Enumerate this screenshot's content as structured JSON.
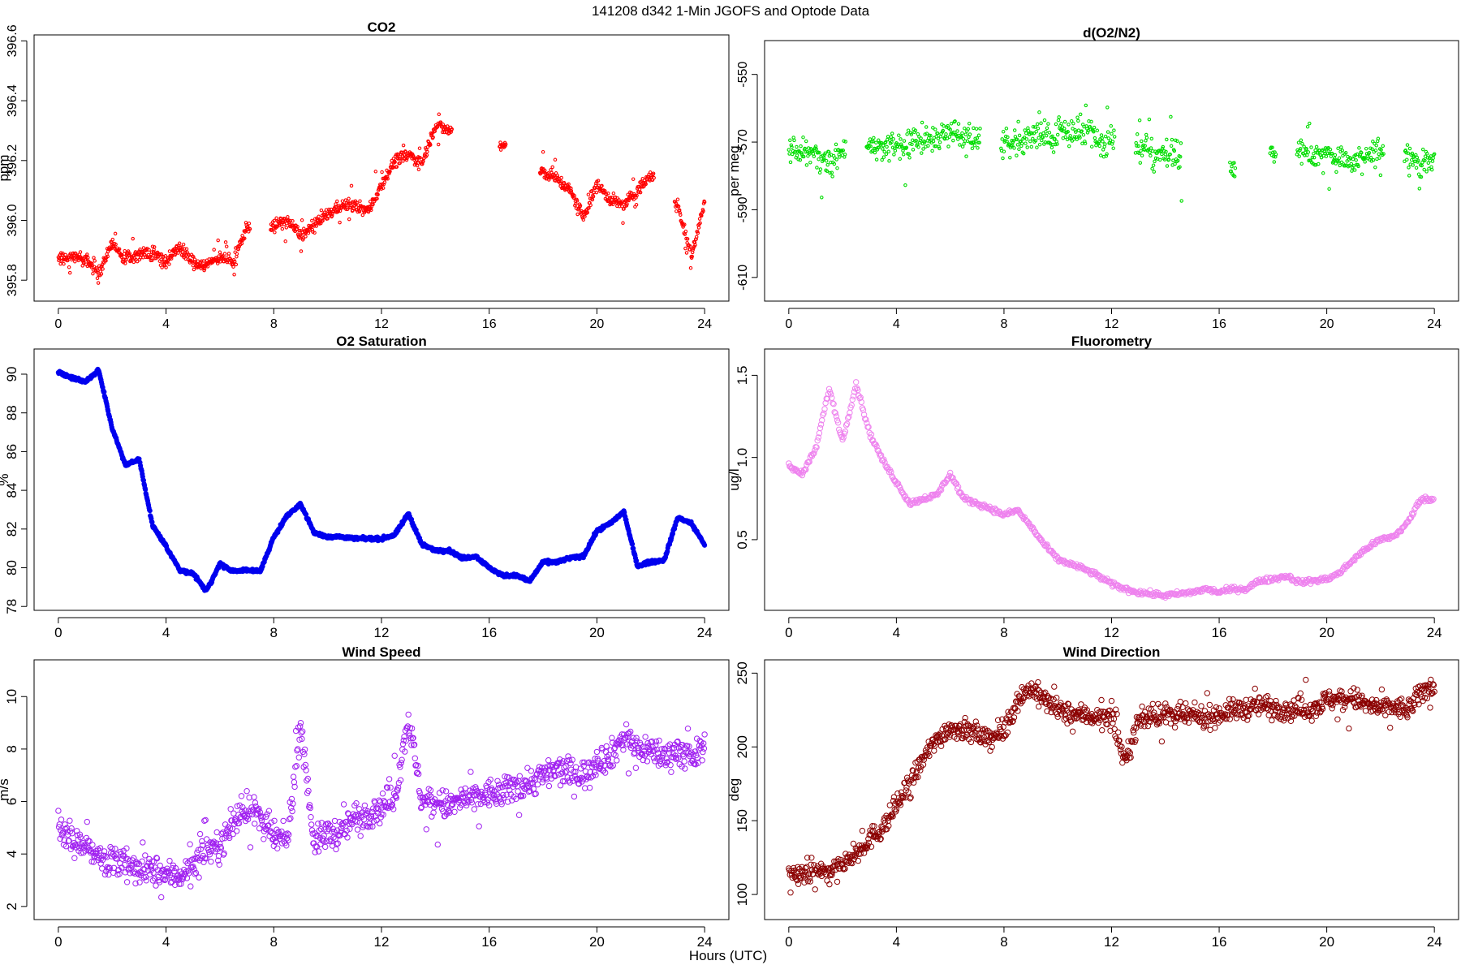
{
  "figure": {
    "title": "141208   d342   1-Min  JGOFS and Optode Data",
    "xlabel": "Hours (UTC)"
  },
  "chart_data": [
    {
      "id": "co2",
      "type": "scatter",
      "title": "CO2",
      "ylabel": "ppm",
      "color": "#ff0000",
      "xlim": [
        -0.9,
        24.9
      ],
      "ylim": [
        395.73,
        396.62
      ],
      "xticks": [
        0,
        4,
        8,
        12,
        16,
        20,
        24
      ],
      "yticks": [
        395.8,
        396.0,
        396.2,
        396.4,
        396.6
      ],
      "ytick_labels": [
        "395.8",
        "396.0",
        "396.2",
        "396.4",
        "396.6"
      ],
      "series": [
        {
          "name": "CO2",
          "x": [
            0,
            0.5,
            1,
            1.5,
            2,
            2.5,
            3,
            3.5,
            4,
            4.5,
            5,
            5.5,
            6,
            6.5,
            7,
            7.5,
            8,
            8.5,
            9,
            9.5,
            10,
            10.5,
            11,
            11.5,
            12,
            12.5,
            13,
            13.5,
            14,
            14.5,
            15,
            15.5,
            16,
            16.5,
            17,
            17.5,
            18,
            18.5,
            19,
            19.5,
            20,
            20.5,
            21,
            21.5,
            22,
            22.5,
            23,
            23.5,
            24
          ],
          "y": [
            395.87,
            395.88,
            395.87,
            395.82,
            395.92,
            395.87,
            395.89,
            395.89,
            395.86,
            395.91,
            395.86,
            395.85,
            395.88,
            395.86,
            395.98,
            null,
            395.98,
            396.0,
            395.95,
            395.98,
            396.02,
            396.05,
            396.05,
            396.03,
            396.12,
            396.2,
            396.22,
            396.19,
            396.32,
            396.3,
            null,
            null,
            null,
            396.25,
            null,
            null,
            396.16,
            396.14,
            396.1,
            396.01,
            396.12,
            396.07,
            396.05,
            396.1,
            396.15,
            null,
            396.05,
            395.88,
            396.06
          ]
        }
      ],
      "tick_size": 16,
      "r": 1.7,
      "fill": false,
      "stroke": 1.1
    },
    {
      "id": "do2n2",
      "type": "scatter",
      "title": "d(O2/N2)",
      "ylabel": "per meg",
      "color": "#00dd00",
      "xlim": [
        -0.9,
        24.9
      ],
      "ylim": [
        -617,
        -540
      ],
      "xticks": [
        0,
        4,
        8,
        12,
        16,
        20,
        24
      ],
      "yticks": [
        -610,
        -590,
        -570,
        -550
      ],
      "ytick_labels": [
        "-610",
        "-590",
        "-570",
        "-550"
      ],
      "series": [
        {
          "name": "d(O2/N2)",
          "x": [
            0,
            0.5,
            1,
            1.5,
            2,
            2.5,
            3,
            3.5,
            4,
            4.5,
            5,
            5.5,
            6,
            6.5,
            7,
            7.5,
            8,
            8.5,
            9,
            9.5,
            10,
            10.5,
            11,
            11.5,
            12,
            12.5,
            13,
            13.5,
            14,
            14.5,
            15,
            15.5,
            16,
            16.5,
            17,
            17.5,
            18,
            18.5,
            19,
            19.5,
            20,
            20.5,
            21,
            21.5,
            22,
            22.5,
            23,
            23.5,
            24
          ],
          "y": [
            -572,
            -573,
            -574,
            -576,
            -573,
            null,
            -571,
            -572,
            -570,
            -571,
            -569,
            -568,
            -567,
            -569,
            -569,
            null,
            -570,
            -569,
            -568,
            -568,
            -568,
            -567,
            -567,
            -570,
            -570,
            null,
            -572,
            -573,
            -573,
            -574,
            null,
            null,
            null,
            -578,
            null,
            null,
            -574,
            null,
            -573,
            -574,
            -573,
            -575,
            -576,
            -575,
            -572,
            null,
            -573,
            -577,
            -575
          ]
        }
      ],
      "tick_size": 16,
      "r": 1.7,
      "fill": false,
      "stroke": 1.1
    },
    {
      "id": "o2sat",
      "type": "scatter",
      "title": "O2 Saturation",
      "ylabel": "%",
      "color": "#0000ee",
      "xlim": [
        -0.9,
        24.9
      ],
      "ylim": [
        77.8,
        91.3
      ],
      "xticks": [
        0,
        4,
        8,
        12,
        16,
        20,
        24
      ],
      "yticks": [
        78,
        80,
        82,
        84,
        86,
        88,
        90
      ],
      "ytick_labels": [
        "78",
        "80",
        "82",
        "84",
        "86",
        "88",
        "90"
      ],
      "series": [
        {
          "name": "O2 Saturation",
          "x": [
            0,
            0.5,
            1,
            1.5,
            2,
            2.5,
            3,
            3.5,
            4,
            4.5,
            5,
            5.5,
            6,
            6.5,
            7,
            7.5,
            8,
            8.5,
            9,
            9.5,
            10,
            10.5,
            11,
            11.5,
            12,
            12.5,
            13,
            13.5,
            14,
            14.5,
            15,
            15.5,
            16,
            16.5,
            17,
            17.5,
            18,
            18.5,
            19,
            19.5,
            20,
            20.5,
            21,
            21.5,
            22,
            22.5,
            23,
            23.5,
            24
          ],
          "y": [
            90.1,
            89.8,
            89.6,
            90.2,
            87.2,
            85.3,
            85.6,
            82.2,
            81.1,
            79.9,
            79.7,
            78.8,
            80.2,
            79.8,
            79.9,
            79.8,
            81.6,
            82.7,
            83.3,
            81.8,
            81.6,
            81.6,
            81.5,
            81.5,
            81.5,
            81.7,
            82.8,
            81.2,
            80.9,
            80.9,
            80.5,
            80.6,
            80.0,
            79.6,
            79.6,
            79.3,
            80.3,
            80.3,
            80.5,
            80.6,
            81.9,
            82.3,
            82.9,
            80.1,
            80.3,
            80.4,
            82.6,
            82.3,
            81.2
          ]
        }
      ],
      "tick_size": 17,
      "r": 2.6,
      "fill": true,
      "stroke": 1.0
    },
    {
      "id": "fluoro",
      "type": "scatter",
      "title": "Fluorometry",
      "ylabel": "ug/l",
      "color": "#ee82ee",
      "xlim": [
        -0.9,
        24.9
      ],
      "ylim": [
        0.07,
        1.66
      ],
      "xticks": [
        0,
        4,
        8,
        12,
        16,
        20,
        24
      ],
      "yticks": [
        0.5,
        1.0,
        1.5
      ],
      "ytick_labels": [
        "0.5",
        "1.0",
        "1.5"
      ],
      "series": [
        {
          "name": "Fluorometry",
          "x": [
            0,
            0.5,
            1,
            1.5,
            2,
            2.5,
            3,
            3.5,
            4,
            4.5,
            5,
            5.5,
            6,
            6.5,
            7,
            7.5,
            8,
            8.5,
            9,
            9.5,
            10,
            10.5,
            11,
            11.5,
            12,
            12.5,
            13,
            13.5,
            14,
            14.5,
            15,
            15.5,
            16,
            16.5,
            17,
            17.5,
            18,
            18.5,
            19,
            19.5,
            20,
            20.5,
            21,
            21.5,
            22,
            22.5,
            23,
            23.5,
            24
          ],
          "y": [
            0.95,
            0.9,
            1.05,
            1.42,
            1.1,
            1.45,
            1.15,
            0.98,
            0.85,
            0.72,
            0.75,
            0.77,
            0.9,
            0.75,
            0.72,
            0.69,
            0.65,
            0.68,
            0.58,
            0.47,
            0.38,
            0.35,
            0.32,
            0.28,
            0.23,
            0.2,
            0.18,
            0.17,
            0.16,
            0.17,
            0.18,
            0.2,
            0.18,
            0.2,
            0.2,
            0.25,
            0.26,
            0.28,
            0.24,
            0.25,
            0.26,
            0.3,
            0.38,
            0.45,
            0.5,
            0.52,
            0.6,
            0.75,
            0.74
          ]
        }
      ],
      "tick_size": 17,
      "r": 3.2,
      "fill": false,
      "stroke": 1.0
    },
    {
      "id": "windspd",
      "type": "scatter",
      "title": "Wind Speed",
      "ylabel": "m/s",
      "color": "#a020f0",
      "xlim": [
        -0.9,
        24.9
      ],
      "ylim": [
        1.5,
        11.4
      ],
      "xticks": [
        0,
        4,
        8,
        12,
        16,
        20,
        24
      ],
      "yticks": [
        2,
        4,
        6,
        8,
        10
      ],
      "ytick_labels": [
        "2",
        "4",
        "6",
        "8",
        "10"
      ],
      "series": [
        {
          "name": "Wind Speed",
          "x": [
            0,
            0.5,
            1,
            1.5,
            2,
            2.5,
            3,
            3.5,
            4,
            4.5,
            5,
            5.5,
            6,
            6.5,
            7,
            7.5,
            8,
            8.5,
            9,
            9.5,
            10,
            10.5,
            11,
            11.5,
            12,
            12.5,
            13,
            13.5,
            14,
            14.5,
            15,
            15.5,
            16,
            16.5,
            17,
            17.5,
            18,
            18.5,
            19,
            19.5,
            20,
            20.5,
            21,
            21.5,
            22,
            22.5,
            23,
            23.5,
            24
          ],
          "y": [
            5.0,
            4.5,
            4.4,
            3.8,
            3.7,
            3.6,
            3.3,
            3.4,
            3.2,
            3.2,
            3.5,
            4.2,
            4.3,
            5.2,
            5.8,
            5.4,
            4.6,
            4.5,
            9.0,
            4.4,
            4.8,
            4.8,
            5.4,
            5.6,
            5.8,
            6.2,
            9.2,
            6.0,
            6.0,
            5.8,
            6.1,
            6.1,
            6.3,
            6.3,
            6.6,
            6.7,
            7.0,
            7.2,
            7.1,
            7.0,
            7.6,
            7.7,
            8.5,
            8.0,
            8.0,
            7.7,
            8.0,
            7.6,
            8.1
          ]
        }
      ],
      "tick_size": 17,
      "r": 3.2,
      "fill": false,
      "stroke": 1.0
    },
    {
      "id": "winddir",
      "type": "scatter",
      "title": "Wind Direction",
      "ylabel": "deg",
      "color": "#8b0000",
      "xlim": [
        -0.9,
        24.9
      ],
      "ylim": [
        83,
        259
      ],
      "xticks": [
        0,
        4,
        8,
        12,
        16,
        20,
        24
      ],
      "yticks": [
        100,
        150,
        200,
        250
      ],
      "ytick_labels": [
        "100",
        "150",
        "200",
        "250"
      ],
      "series": [
        {
          "name": "Wind Direction",
          "x": [
            0,
            0.5,
            1,
            1.5,
            2,
            2.5,
            3,
            3.5,
            4,
            4.5,
            5,
            5.5,
            6,
            6.5,
            7,
            7.5,
            8,
            8.5,
            9,
            9.5,
            10,
            10.5,
            11,
            11.5,
            12,
            12.5,
            13,
            13.5,
            14,
            14.5,
            15,
            15.5,
            16,
            16.5,
            17,
            17.5,
            18,
            18.5,
            19,
            19.5,
            20,
            20.5,
            21,
            21.5,
            22,
            22.5,
            23,
            23.5,
            24
          ],
          "y": [
            113,
            113,
            118,
            115,
            120,
            127,
            138,
            145,
            160,
            175,
            192,
            205,
            213,
            212,
            208,
            206,
            210,
            232,
            240,
            232,
            225,
            222,
            222,
            220,
            220,
            190,
            218,
            221,
            222,
            221,
            221,
            220,
            222,
            225,
            226,
            228,
            228,
            225,
            226,
            226,
            232,
            232,
            233,
            228,
            226,
            227,
            225,
            236,
            243
          ]
        }
      ],
      "tick_size": 17,
      "r": 3.2,
      "fill": false,
      "stroke": 1.0
    }
  ]
}
